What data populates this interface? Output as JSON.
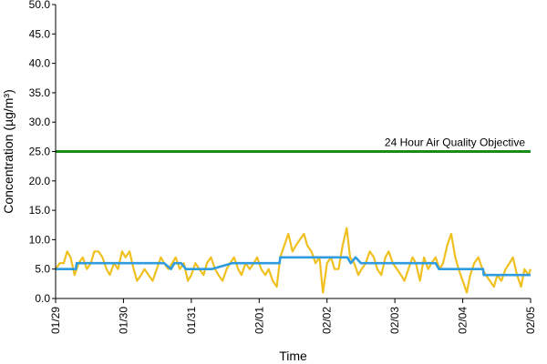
{
  "chart_data": {
    "type": "line",
    "title": "",
    "xlabel": "Time",
    "ylabel": "Concentration (µg/m³)",
    "ylim": [
      0,
      50
    ],
    "yticks": [
      0,
      5,
      10,
      15,
      20,
      25,
      30,
      35,
      40,
      45,
      50
    ],
    "ytick_labels": [
      "0.0",
      "5.0",
      "10.0",
      "15.0",
      "20.0",
      "25.0",
      "30.0",
      "35.0",
      "40.0",
      "45.0",
      "50.0"
    ],
    "xlim": [
      "01/29",
      "02/05"
    ],
    "x_tick_labels": [
      "01/29",
      "01/30",
      "01/31",
      "02/01",
      "02/02",
      "02/03",
      "02/04",
      "02/05"
    ],
    "grid": false,
    "colors": {
      "hourly": "#f0c020",
      "daily": "#2f9be0",
      "objective": "#1a8c1a"
    },
    "annotations": [
      {
        "text": "24 Hour Air Quality Objective",
        "y": 25
      }
    ],
    "series": [
      {
        "style": "hourly",
        "x": [
          0,
          0.06,
          0.12,
          0.17,
          0.22,
          0.28,
          0.34,
          0.4,
          0.46,
          0.52,
          0.57,
          0.63,
          0.69,
          0.75,
          0.8,
          0.86,
          0.92,
          0.98,
          1.03,
          1.09,
          1.15,
          1.2,
          1.26,
          1.31,
          1.37,
          1.43,
          1.49,
          1.55,
          1.6,
          1.66,
          1.72,
          1.77,
          1.83,
          1.89,
          1.95,
          2.0,
          2.06,
          2.12,
          2.18,
          2.23,
          2.29,
          2.35,
          2.4,
          2.46,
          2.52,
          2.57,
          2.63,
          2.69,
          2.74,
          2.8,
          2.86,
          2.92,
          2.97,
          3.03,
          3.09,
          3.14,
          3.2,
          3.26,
          3.31,
          3.37,
          3.43,
          3.49,
          3.54,
          3.6,
          3.66,
          3.71,
          3.77,
          3.83,
          3.89,
          3.94,
          4.0,
          4.06,
          4.11,
          4.17,
          4.23,
          4.29,
          4.34,
          4.4,
          4.46,
          4.51,
          4.57,
          4.63,
          4.69,
          4.74,
          4.8,
          4.86,
          4.91,
          4.97,
          5.03,
          5.09,
          5.14,
          5.2,
          5.26,
          5.31,
          5.37,
          5.43,
          5.49,
          5.54,
          5.6,
          5.66,
          5.71,
          5.77,
          5.83,
          5.89,
          5.94,
          6.0,
          6.06,
          6.11,
          6.17,
          6.23,
          6.29,
          6.34,
          6.4,
          6.46,
          6.51,
          6.57,
          6.63,
          6.69,
          6.74,
          6.8,
          6.86,
          6.91,
          6.97,
          7.0
        ],
        "y": [
          5,
          6,
          6,
          8,
          7,
          4,
          6,
          7,
          5,
          6,
          8,
          8,
          7,
          5,
          4,
          6,
          5,
          8,
          7,
          8,
          5,
          3,
          4,
          5,
          4,
          3,
          5,
          7,
          6,
          5,
          6,
          7,
          5,
          6,
          3,
          4,
          6,
          5,
          4,
          6,
          7,
          5,
          4,
          3,
          5,
          6,
          7,
          5,
          4,
          6,
          5,
          6,
          7,
          5,
          4,
          5,
          3,
          2,
          7,
          9,
          11,
          8,
          9,
          10,
          11,
          9,
          8,
          6,
          7,
          1,
          6,
          7,
          5,
          5,
          9,
          12,
          7,
          6,
          4,
          5,
          6,
          8,
          7,
          5,
          4,
          7,
          8,
          6,
          5,
          4,
          3,
          5,
          7,
          6,
          3,
          7,
          5,
          6,
          7,
          5,
          6,
          9,
          11,
          7,
          5,
          3,
          1,
          4,
          6,
          7,
          5,
          4,
          3,
          2,
          4,
          3,
          5,
          6,
          7,
          4,
          2,
          5,
          4,
          5
        ]
      },
      {
        "style": "daily",
        "x": [
          0,
          0.3,
          0.31,
          0.8,
          1.2,
          1.6,
          1.7,
          1.75,
          1.85,
          1.92,
          2.0,
          2.3,
          2.6,
          3.0,
          3.2,
          3.3,
          3.31,
          3.7,
          4.0,
          4.3,
          4.35,
          4.42,
          4.5,
          4.6,
          4.8,
          5.0,
          5.4,
          5.6,
          5.65,
          5.8,
          6.0,
          6.2,
          6.3,
          6.31,
          6.6,
          6.9,
          7.0
        ],
        "y": [
          5,
          5,
          6,
          6,
          6,
          6,
          5,
          6,
          6,
          5,
          5,
          5,
          6,
          6,
          6,
          6,
          7,
          7,
          7,
          7,
          6,
          7,
          6,
          6,
          6,
          6,
          6,
          6,
          5,
          5,
          5,
          5,
          5,
          4,
          4,
          4,
          4
        ]
      },
      {
        "style": "objective",
        "x": [
          0,
          7
        ],
        "y": [
          25,
          25
        ]
      }
    ]
  }
}
